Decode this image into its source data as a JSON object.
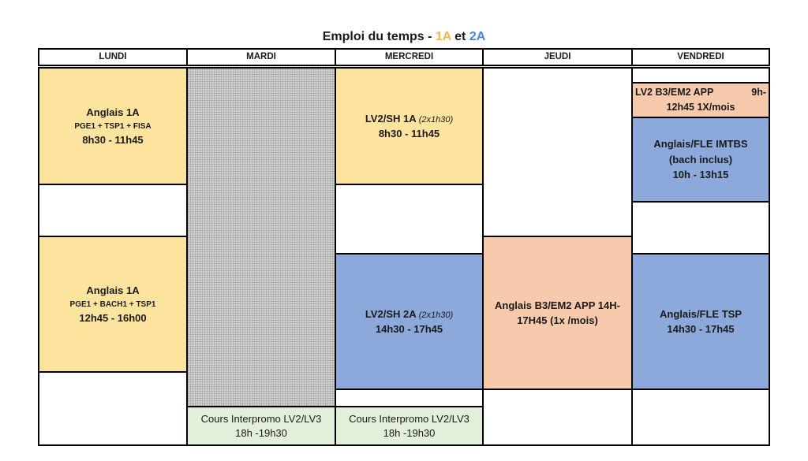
{
  "title": {
    "prefix": "Emploi du temps - ",
    "y1": "1A",
    "mid": " et ",
    "y2": "2A"
  },
  "days": [
    "LUNDI",
    "MARDI",
    "MERCREDI",
    "JEUDI",
    "VENDREDI"
  ],
  "colors": {
    "yellow": "#fde49e",
    "blue": "#8da9db",
    "salmon": "#f7caac",
    "green": "#e2efd9",
    "hatch": "#d4d4d4"
  },
  "monday": {
    "morning": {
      "title": "Anglais 1A",
      "groups": "PGE1 + TSP1 + FISA",
      "time": "8h30 - 11h45"
    },
    "afternoon": {
      "title": "Anglais 1A",
      "groups": "PGE1 + BACH1 + TSP1",
      "time": "12h45 - 16h00"
    }
  },
  "tuesday": {
    "interpromo": {
      "title": "Cours Interpromo LV2/LV3",
      "time": "18h -19h30"
    }
  },
  "wednesday": {
    "morning": {
      "title": "LV2/SH 1A ",
      "note": "(2x1h30)",
      "time": "8h30 - 11h45"
    },
    "afternoon": {
      "title": "LV2/SH 2A ",
      "note": "(2x1h30)",
      "time": "14h30 - 17h45"
    },
    "interpromo": {
      "title": "Cours Interpromo LV2/LV3",
      "time": "18h -19h30"
    }
  },
  "thursday": {
    "afternoon": {
      "line1": "Anglais B3/EM2 APP 14H-",
      "line2": "17H45 (1x /mois)"
    }
  },
  "friday": {
    "app": {
      "left": "LV2 B3/EM2 APP",
      "right": "9h-",
      "line2": "12h45 1X/mois"
    },
    "morning": {
      "title": "Anglais/FLE  IMTBS",
      "sub": "(bach inclus)",
      "time": "10h - 13h15"
    },
    "afternoon": {
      "title": "Anglais/FLE  TSP",
      "time": "14h30 - 17h45"
    }
  }
}
